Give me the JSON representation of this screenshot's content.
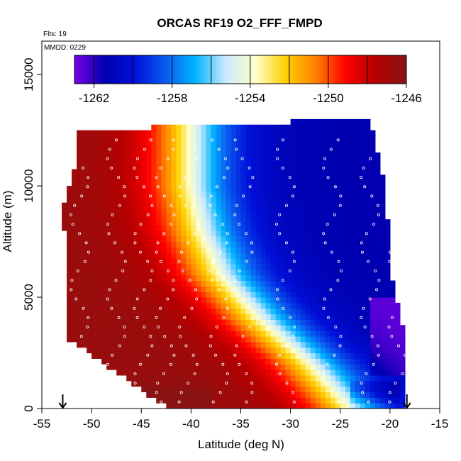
{
  "chart_data": {
    "type": "heatmap",
    "title": "ORCAS RF19 O2_FFF_FMPD",
    "annotations": {
      "flights": "Flts: 19",
      "mmdd": "MMDD: 0229"
    },
    "xlabel": "Latitude (deg N)",
    "ylabel": "Altitude (m)",
    "xlim": [
      -55,
      -15
    ],
    "ylim": [
      0,
      16500
    ],
    "x_ticks": [
      -55,
      -50,
      -45,
      -40,
      -35,
      -30,
      -25,
      -20,
      -15
    ],
    "x_tick_labels": [
      "-55",
      "-50",
      "-45",
      "-40",
      "-35",
      "-30",
      "-25",
      "-20",
      "-15"
    ],
    "y_ticks": [
      0,
      5000,
      10000,
      15000
    ],
    "y_tick_labels": [
      "0",
      "5000",
      "10000",
      "15000"
    ],
    "colorbar": {
      "range": [
        -1263,
        -1246
      ],
      "ticks": [
        -1262,
        -1258,
        -1254,
        -1250,
        -1246
      ],
      "tick_labels": [
        "-1262",
        "-1258",
        "-1254",
        "-1250",
        "-1246"
      ],
      "stops": [
        "#7b00e6",
        "#0000b0",
        "#0010d8",
        "#0a5af0",
        "#00b4ff",
        "#c8eaff",
        "#ffffc8",
        "#ffd000",
        "#ff8000",
        "#ff0000",
        "#b40000",
        "#8a1414"
      ]
    },
    "field": {
      "description_rows_altitude_m": [
        0,
        2000,
        4000,
        6000,
        8000,
        10000,
        12000
      ],
      "transition_latitude_by_altitude": [
        {
          "alt": 0,
          "lat": -24
        },
        {
          "alt": 2000,
          "lat": -28
        },
        {
          "alt": 4000,
          "lat": -33
        },
        {
          "alt": 6000,
          "lat": -37
        },
        {
          "alt": 8000,
          "lat": -39
        },
        {
          "alt": 10000,
          "lat": -40
        },
        {
          "alt": 12000,
          "lat": -40
        }
      ],
      "min_value": -1263,
      "max_value": -1246
    },
    "arrows": [
      {
        "lat": -52.9,
        "label": ""
      },
      {
        "lat": -18.3,
        "label": ""
      }
    ]
  }
}
